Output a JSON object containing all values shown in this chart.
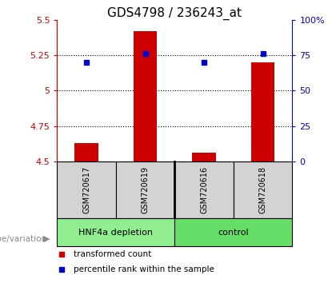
{
  "title": "GDS4798 / 236243_at",
  "categories": [
    "GSM720617",
    "GSM720619",
    "GSM720616",
    "GSM720618"
  ],
  "bar_values": [
    4.63,
    5.42,
    4.56,
    5.2
  ],
  "dot_values": [
    5.2,
    5.26,
    5.2,
    5.26
  ],
  "ylim_left": [
    4.5,
    5.5
  ],
  "ylim_right": [
    0,
    100
  ],
  "right_ticks": [
    0,
    25,
    50,
    75,
    100
  ],
  "right_tick_labels": [
    "0",
    "25",
    "50",
    "75",
    "100%"
  ],
  "left_ticks": [
    4.5,
    4.75,
    5.0,
    5.25,
    5.5
  ],
  "left_tick_labels": [
    "4.5",
    "4.75",
    "5",
    "5.25",
    "5.5"
  ],
  "dotted_lines": [
    4.75,
    5.0,
    5.25
  ],
  "bar_color": "#cc0000",
  "dot_color": "#0000cc",
  "left_axis_color": "#cc0000",
  "right_axis_color": "#0000cc",
  "group_labels": [
    "HNF4a depletion",
    "control"
  ],
  "group_colors": [
    "#90ee90",
    "#66dd66"
  ],
  "sample_bg_color": "#d3d3d3",
  "genotype_label": "genotype/variation",
  "legend_items": [
    {
      "color": "#cc0000",
      "label": "transformed count"
    },
    {
      "color": "#0000cc",
      "label": "percentile rank within the sample"
    }
  ],
  "bar_bottom": 4.5,
  "title_fontsize": 11,
  "tick_fontsize": 8
}
